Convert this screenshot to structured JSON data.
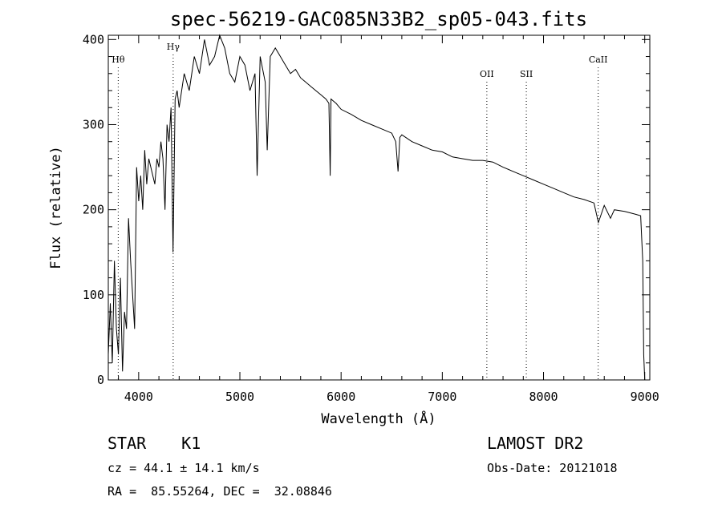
{
  "chart_data": {
    "type": "line",
    "title": "spec-56219-GAC085N33B2_sp05-043.fits",
    "xlabel": "Wavelength (Å)",
    "ylabel": "Flux (relative)",
    "xlim": [
      3700,
      9050
    ],
    "ylim": [
      0,
      405
    ],
    "xticks": [
      4000,
      5000,
      6000,
      7000,
      8000,
      9000
    ],
    "yticks": [
      0,
      100,
      200,
      300,
      400
    ],
    "grid": false,
    "line_markers": [
      {
        "label": "Hθ",
        "x": 3798
      },
      {
        "label": "Hγ",
        "x": 4341
      },
      {
        "label": "OII",
        "x": 7440
      },
      {
        "label": "SII",
        "x": 7830
      },
      {
        "label": "CaII",
        "x": 8540
      }
    ],
    "series": [
      {
        "x": [
          3700,
          3720,
          3740,
          3760,
          3780,
          3800,
          3820,
          3840,
          3860,
          3880,
          3900,
          3920,
          3940,
          3960,
          3980,
          4000,
          4020,
          4040,
          4060,
          4080,
          4100,
          4120,
          4140,
          4160,
          4180,
          4200,
          4220,
          4240,
          4260,
          4280,
          4300,
          4320,
          4340,
          4360,
          4380,
          4400,
          4450,
          4500,
          4550,
          4600,
          4650,
          4700,
          4750,
          4800,
          4850,
          4900,
          4950,
          5000,
          5050,
          5100,
          5150,
          5170,
          5200,
          5250,
          5270,
          5300,
          5350,
          5400,
          5450,
          5500,
          5550,
          5600,
          5650,
          5700,
          5750,
          5800,
          5850,
          5880,
          5892,
          5900,
          5950,
          6000,
          6100,
          6200,
          6300,
          6400,
          6500,
          6540,
          6563,
          6580,
          6600,
          6700,
          6800,
          6900,
          7000,
          7100,
          7200,
          7300,
          7400,
          7500,
          7600,
          7700,
          7800,
          7900,
          8000,
          8100,
          8200,
          8300,
          8400,
          8498,
          8542,
          8600,
          8662,
          8700,
          8800,
          8900,
          8960,
          8980,
          8990,
          9000
        ],
        "values": [
          30,
          90,
          20,
          140,
          60,
          30,
          120,
          10,
          80,
          60,
          190,
          140,
          100,
          60,
          250,
          210,
          240,
          200,
          270,
          230,
          260,
          250,
          240,
          230,
          260,
          250,
          280,
          260,
          200,
          300,
          280,
          320,
          150,
          330,
          340,
          320,
          360,
          340,
          380,
          360,
          400,
          370,
          380,
          420,
          390,
          360,
          350,
          380,
          370,
          340,
          360,
          240,
          380,
          350,
          270,
          380,
          390,
          380,
          370,
          360,
          365,
          355,
          350,
          345,
          340,
          335,
          330,
          325,
          240,
          330,
          325,
          318,
          312,
          305,
          300,
          295,
          290,
          280,
          245,
          285,
          288,
          280,
          275,
          270,
          268,
          262,
          260,
          258,
          258,
          256,
          250,
          245,
          240,
          235,
          230,
          225,
          220,
          215,
          212,
          208,
          185,
          205,
          190,
          200,
          198,
          195,
          193,
          140,
          30,
          0
        ]
      }
    ]
  },
  "info": {
    "object_class": "STAR",
    "subclass": "K1",
    "survey": "LAMOST DR2",
    "cz": "cz = 44.1 ± 14.1 km/s",
    "obs_date": "Obs-Date: 20121018",
    "coords": "RA =  85.55264, DEC =  32.08846"
  }
}
